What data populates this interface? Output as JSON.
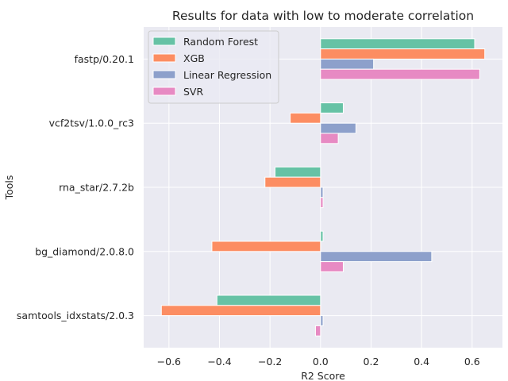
{
  "chart_data": {
    "type": "bar",
    "orientation": "horizontal",
    "title": "Results for data with low to moderate correlation",
    "xlabel": "R2 Score",
    "ylabel": "Tools",
    "categories": [
      "fastp/0.20.1",
      "vcf2tsv/1.0.0_rc3",
      "rna_star/2.7.2b",
      "bg_diamond/2.0.8.0",
      "samtools_idxstats/2.0.3"
    ],
    "xlim": [
      -0.7,
      0.72
    ],
    "xticks": [
      -0.6,
      -0.4,
      -0.2,
      0.0,
      0.2,
      0.4,
      0.6
    ],
    "xtick_labels": [
      "−0.6",
      "−0.4",
      "−0.2",
      "0.0",
      "0.2",
      "0.4",
      "0.6"
    ],
    "grid": true,
    "legend_position": "top-left",
    "series": [
      {
        "name": "Random Forest",
        "color": "#66c2a5",
        "values": [
          0.61,
          0.09,
          -0.18,
          0.01,
          -0.41
        ]
      },
      {
        "name": "XGB",
        "color": "#fc8d62",
        "values": [
          0.65,
          -0.12,
          -0.22,
          -0.43,
          -0.63
        ]
      },
      {
        "name": "Linear Regression",
        "color": "#8da0cb",
        "values": [
          0.21,
          0.14,
          0.01,
          0.44,
          0.01
        ]
      },
      {
        "name": "SVR",
        "color": "#e78ac3",
        "values": [
          0.63,
          0.07,
          0.01,
          0.09,
          -0.02
        ]
      }
    ]
  }
}
